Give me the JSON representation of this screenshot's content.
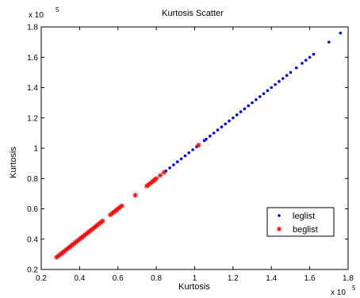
{
  "chart_data": {
    "type": "scatter",
    "title": "Kurtosis Scatter",
    "xlabel": "Kurtosis",
    "ylabel": "Kurtosis",
    "x_exponent_label": "x 10",
    "x_exponent_power": "5",
    "y_exponent_label": "x 10",
    "y_exponent_power": "5",
    "xlim": [
      0.2,
      1.8
    ],
    "ylim": [
      0.2,
      1.8
    ],
    "x_ticks": [
      "0.2",
      "0.4",
      "0.6",
      "0.8",
      "1",
      "1.2",
      "1.4",
      "1.6",
      "1.8"
    ],
    "y_ticks": [
      "0.2",
      "0.4",
      "0.6",
      "0.8",
      "1",
      "1.2",
      "1.4",
      "1.6",
      "1.8"
    ],
    "tick_values": [
      0.2,
      0.4,
      0.6,
      0.8,
      1.0,
      1.2,
      1.4,
      1.6,
      1.8
    ],
    "grid": false,
    "legend_position": "lower-right",
    "series": [
      {
        "name": "leglist",
        "marker": "dot",
        "color": "#0000ff",
        "x": [
          0.85,
          0.87,
          0.89,
          0.91,
          0.93,
          0.95,
          0.97,
          0.99,
          1.01,
          1.05,
          1.06,
          1.08,
          1.1,
          1.12,
          1.14,
          1.16,
          1.18,
          1.2,
          1.22,
          1.24,
          1.26,
          1.28,
          1.3,
          1.32,
          1.34,
          1.36,
          1.38,
          1.4,
          1.42,
          1.44,
          1.46,
          1.48,
          1.5,
          1.53,
          1.56,
          1.58,
          1.6,
          1.62,
          1.7,
          1.76
        ],
        "y": [
          0.85,
          0.87,
          0.89,
          0.91,
          0.93,
          0.95,
          0.97,
          0.99,
          1.01,
          1.05,
          1.06,
          1.08,
          1.1,
          1.12,
          1.14,
          1.16,
          1.18,
          1.2,
          1.22,
          1.24,
          1.26,
          1.28,
          1.3,
          1.32,
          1.34,
          1.36,
          1.38,
          1.4,
          1.42,
          1.44,
          1.46,
          1.48,
          1.5,
          1.53,
          1.56,
          1.58,
          1.6,
          1.62,
          1.7,
          1.76
        ]
      },
      {
        "name": "beglist",
        "marker": "asterisk",
        "color": "#ff0000",
        "x": [
          0.28,
          0.29,
          0.3,
          0.31,
          0.32,
          0.33,
          0.34,
          0.35,
          0.36,
          0.37,
          0.38,
          0.39,
          0.4,
          0.41,
          0.42,
          0.43,
          0.44,
          0.45,
          0.46,
          0.47,
          0.48,
          0.49,
          0.5,
          0.51,
          0.52,
          0.56,
          0.57,
          0.58,
          0.59,
          0.6,
          0.61,
          0.62,
          0.69,
          0.75,
          0.76,
          0.77,
          0.78,
          0.79,
          0.8,
          0.82,
          0.84,
          1.02
        ],
        "y": [
          0.28,
          0.29,
          0.3,
          0.31,
          0.32,
          0.33,
          0.34,
          0.35,
          0.36,
          0.37,
          0.38,
          0.39,
          0.4,
          0.41,
          0.42,
          0.43,
          0.44,
          0.45,
          0.46,
          0.47,
          0.48,
          0.49,
          0.5,
          0.51,
          0.52,
          0.56,
          0.57,
          0.58,
          0.59,
          0.6,
          0.61,
          0.62,
          0.69,
          0.75,
          0.76,
          0.77,
          0.78,
          0.79,
          0.8,
          0.82,
          0.84,
          1.02
        ]
      }
    ]
  }
}
